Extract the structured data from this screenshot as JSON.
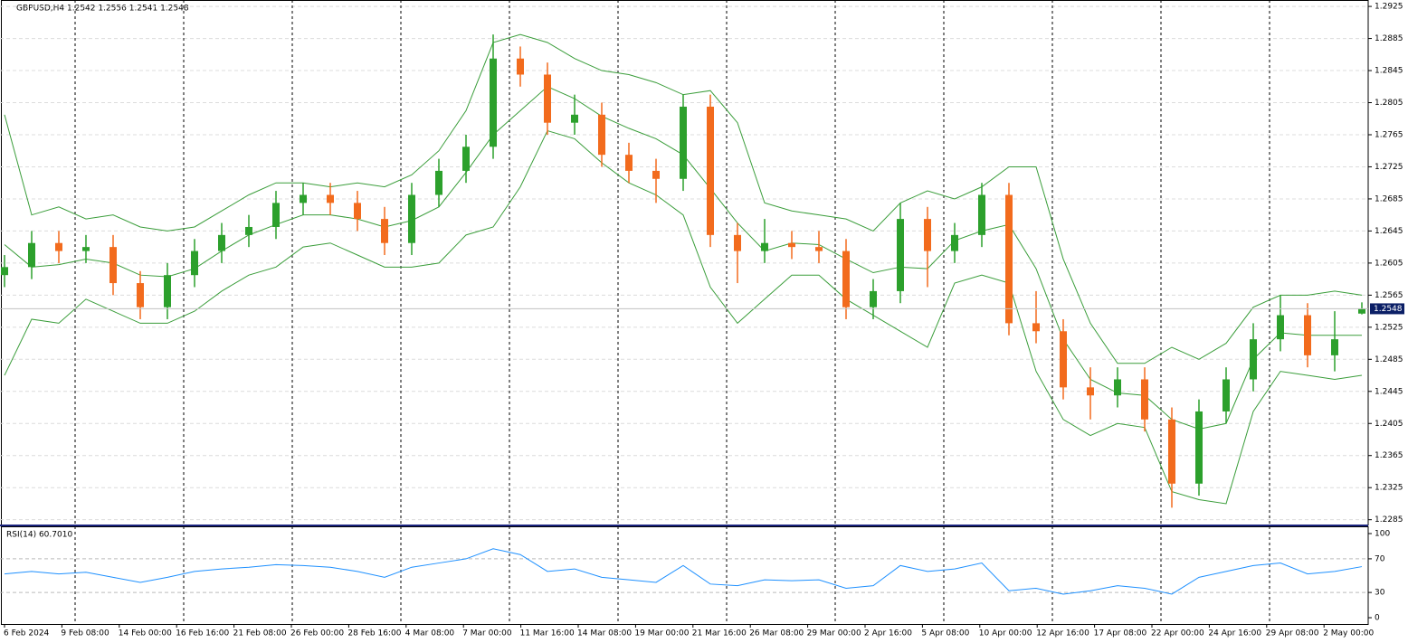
{
  "chart_data": [
    {
      "type": "candlestick",
      "title": "GBPUSD,H4  1.2542 1.2556 1.2541 1.2548",
      "x_labels": [
        "6 Feb 2024",
        "9 Feb 08:00",
        "14 Feb 00:00",
        "16 Feb 16:00",
        "21 Feb 08:00",
        "26 Feb 00:00",
        "28 Feb 16:00",
        "4 Mar 08:00",
        "7 Mar 00:00",
        "11 Mar 16:00",
        "14 Mar 08:00",
        "19 Mar 00:00",
        "21 Mar 16:00",
        "26 Mar 08:00",
        "29 Mar 00:00",
        "2 Apr 16:00",
        "5 Apr 08:00",
        "10 Apr 00:00",
        "12 Apr 16:00",
        "17 Apr 08:00",
        "22 Apr 00:00",
        "24 Apr 16:00",
        "29 Apr 08:00",
        "2 May 00:00"
      ],
      "open": [
        1.259,
        1.26,
        1.263,
        1.262,
        1.2625,
        1.258,
        1.255,
        1.259,
        1.262,
        1.264,
        1.265,
        1.268,
        1.269,
        1.268,
        1.266,
        1.263,
        1.269,
        1.272,
        1.275,
        1.286,
        1.284,
        1.278,
        1.279,
        1.274,
        1.272,
        1.271,
        1.28,
        1.264,
        1.262,
        1.263,
        1.2625,
        1.262,
        1.255,
        1.257,
        1.266,
        1.262,
        1.264,
        1.269,
        1.253,
        1.252,
        1.245,
        1.244,
        1.246,
        1.241,
        1.233,
        1.242,
        1.246,
        1.251,
        1.254,
        1.249,
        1.2542
      ],
      "high": [
        1.2615,
        1.2645,
        1.2645,
        1.264,
        1.264,
        1.2595,
        1.2605,
        1.2635,
        1.2655,
        1.2665,
        1.2695,
        1.2705,
        1.2705,
        1.2695,
        1.2675,
        1.2705,
        1.2735,
        1.2765,
        1.289,
        1.2875,
        1.2855,
        1.2815,
        1.2805,
        1.2755,
        1.2735,
        1.2815,
        1.2815,
        1.2655,
        1.266,
        1.2645,
        1.2645,
        1.2635,
        1.2585,
        1.268,
        1.2675,
        1.2655,
        1.2705,
        1.2705,
        1.257,
        1.2535,
        1.2475,
        1.2475,
        1.2475,
        1.2425,
        1.2435,
        1.2475,
        1.253,
        1.2565,
        1.2555,
        1.2545,
        1.2556
      ],
      "low": [
        1.2575,
        1.2585,
        1.2605,
        1.2605,
        1.2565,
        1.2535,
        1.2535,
        1.2575,
        1.2605,
        1.2625,
        1.2635,
        1.2665,
        1.2665,
        1.2645,
        1.2615,
        1.2615,
        1.2675,
        1.2705,
        1.2735,
        1.2825,
        1.2765,
        1.2765,
        1.2725,
        1.2705,
        1.268,
        1.2695,
        1.2625,
        1.258,
        1.2605,
        1.261,
        1.2605,
        1.2535,
        1.2535,
        1.2555,
        1.2575,
        1.2605,
        1.2625,
        1.2515,
        1.2505,
        1.2435,
        1.241,
        1.2425,
        1.2395,
        1.23,
        1.2315,
        1.2405,
        1.2445,
        1.2495,
        1.2475,
        1.247,
        1.2541
      ],
      "close": [
        1.26,
        1.263,
        1.262,
        1.2625,
        1.258,
        1.255,
        1.259,
        1.262,
        1.264,
        1.265,
        1.268,
        1.269,
        1.268,
        1.266,
        1.263,
        1.269,
        1.272,
        1.275,
        1.286,
        1.284,
        1.278,
        1.279,
        1.274,
        1.272,
        1.271,
        1.28,
        1.264,
        1.262,
        1.263,
        1.2625,
        1.262,
        1.255,
        1.257,
        1.266,
        1.262,
        1.264,
        1.269,
        1.253,
        1.252,
        1.245,
        1.244,
        1.246,
        1.241,
        1.233,
        1.242,
        1.246,
        1.251,
        1.254,
        1.249,
        1.251,
        1.2548
      ],
      "bands": {
        "upper": [
          1.279,
          1.2665,
          1.2675,
          1.266,
          1.2665,
          1.265,
          1.2645,
          1.265,
          1.267,
          1.269,
          1.2705,
          1.2705,
          1.27,
          1.2705,
          1.27,
          1.2715,
          1.2745,
          1.2795,
          1.288,
          1.289,
          1.288,
          1.286,
          1.2845,
          1.284,
          1.283,
          1.2815,
          1.282,
          1.278,
          1.268,
          1.267,
          1.2665,
          1.266,
          1.2645,
          1.268,
          1.2695,
          1.2685,
          1.27,
          1.2725,
          1.2725,
          1.261,
          1.253,
          1.248,
          1.248,
          1.25,
          1.2485,
          1.2505,
          1.255,
          1.2565,
          1.2565,
          1.257,
          1.2565
        ],
        "middle": [
          1.2628,
          1.26,
          1.2603,
          1.261,
          1.2605,
          1.259,
          1.2588,
          1.2598,
          1.262,
          1.264,
          1.2653,
          1.2665,
          1.2665,
          1.266,
          1.265,
          1.2658,
          1.2675,
          1.2718,
          1.2765,
          1.2795,
          1.2825,
          1.281,
          1.2788,
          1.2773,
          1.276,
          1.274,
          1.2698,
          1.2655,
          1.262,
          1.263,
          1.2628,
          1.261,
          1.2593,
          1.26,
          1.2598,
          1.2633,
          1.2645,
          1.2653,
          1.2598,
          1.251,
          1.246,
          1.2443,
          1.244,
          1.241,
          1.2398,
          1.2405,
          1.2485,
          1.2518,
          1.2515,
          1.2515,
          1.2515
        ],
        "lower": [
          1.2465,
          1.2535,
          1.253,
          1.256,
          1.2545,
          1.253,
          1.253,
          1.2545,
          1.257,
          1.259,
          1.26,
          1.2625,
          1.263,
          1.2615,
          1.26,
          1.26,
          1.2605,
          1.264,
          1.265,
          1.27,
          1.277,
          1.276,
          1.273,
          1.2705,
          1.269,
          1.2665,
          1.2575,
          1.253,
          1.256,
          1.259,
          1.259,
          1.256,
          1.254,
          1.252,
          1.25,
          1.258,
          1.259,
          1.258,
          1.247,
          1.241,
          1.239,
          1.2405,
          1.24,
          1.232,
          1.231,
          1.2305,
          1.242,
          1.247,
          1.2465,
          1.246,
          1.2465
        ]
      },
      "up_color": "#2ca02c",
      "down_color": "#f26b1d",
      "band_color": "#3a9d3a",
      "ylim": [
        1.2279,
        1.2933
      ],
      "yticks": [
        1.2925,
        1.2885,
        1.2845,
        1.2805,
        1.2765,
        1.2725,
        1.2685,
        1.2645,
        1.2605,
        1.2565,
        1.2525,
        1.2485,
        1.2445,
        1.2405,
        1.2365,
        1.2325,
        1.2285
      ],
      "grid": true
    },
    {
      "type": "line",
      "title": "RSI(14) 60.7010",
      "values": [
        52,
        55,
        52,
        54,
        48,
        42,
        48,
        55,
        58,
        60,
        63,
        62,
        60,
        55,
        48,
        60,
        65,
        70,
        82,
        75,
        55,
        58,
        48,
        45,
        42,
        62,
        40,
        38,
        45,
        44,
        45,
        35,
        38,
        62,
        55,
        58,
        65,
        32,
        35,
        28,
        32,
        38,
        35,
        28,
        48,
        55,
        62,
        65,
        52,
        55,
        60.701
      ],
      "color": "#1e90ff",
      "ylim": [
        -7.5,
        108.6
      ],
      "yticks": [
        0,
        30,
        70,
        100
      ],
      "levels": [
        30,
        70
      ]
    }
  ]
}
